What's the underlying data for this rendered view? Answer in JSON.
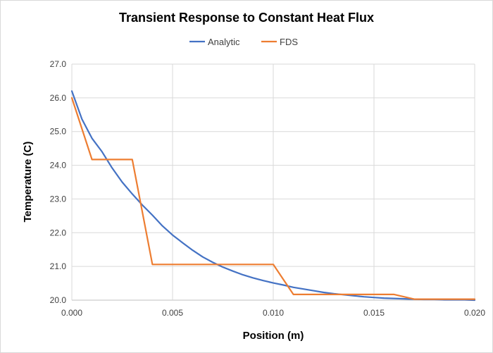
{
  "chart_data": {
    "type": "line",
    "title": "Transient  Response  to  Constant  Heat  Flux",
    "xlabel": "Position (m)",
    "ylabel": "Temperature (C)",
    "xlim": [
      0.0,
      0.02
    ],
    "ylim": [
      20.0,
      27.0
    ],
    "x_ticks": [
      "0.000",
      "0.005",
      "0.010",
      "0.015",
      "0.020"
    ],
    "x_tick_values": [
      0.0,
      0.005,
      0.01,
      0.015,
      0.02
    ],
    "y_ticks": [
      "20.0",
      "21.0",
      "22.0",
      "23.0",
      "24.0",
      "25.0",
      "26.0",
      "27.0"
    ],
    "y_tick_values": [
      20,
      21,
      22,
      23,
      24,
      25,
      26,
      27
    ],
    "grid": true,
    "legend_position": "top",
    "series": [
      {
        "name": "Analytic",
        "color": "#4472c4",
        "x": [
          0.0,
          0.0005,
          0.001,
          0.0015,
          0.002,
          0.0025,
          0.003,
          0.0035,
          0.004,
          0.0045,
          0.005,
          0.0055,
          0.006,
          0.0065,
          0.007,
          0.0075,
          0.008,
          0.0085,
          0.009,
          0.0095,
          0.01,
          0.0105,
          0.011,
          0.0115,
          0.012,
          0.0125,
          0.013,
          0.0135,
          0.014,
          0.0145,
          0.015,
          0.0155,
          0.016,
          0.0165,
          0.017,
          0.0175,
          0.018,
          0.0185,
          0.019,
          0.0195,
          0.02
        ],
        "values": [
          26.2,
          25.37,
          24.8,
          24.4,
          23.92,
          23.5,
          23.15,
          22.82,
          22.52,
          22.2,
          21.93,
          21.7,
          21.48,
          21.28,
          21.12,
          20.98,
          20.86,
          20.75,
          20.66,
          20.58,
          20.51,
          20.45,
          20.38,
          20.33,
          20.28,
          20.23,
          20.19,
          20.16,
          20.13,
          20.1,
          20.08,
          20.06,
          20.05,
          20.04,
          20.03,
          20.02,
          20.02,
          20.01,
          20.01,
          20.01,
          20.0
        ]
      },
      {
        "name": "FDS",
        "color": "#ed7d31",
        "x": [
          0.0,
          0.001,
          0.002,
          0.003,
          0.004,
          0.005,
          0.006,
          0.007,
          0.008,
          0.009,
          0.01,
          0.011,
          0.012,
          0.013,
          0.014,
          0.015,
          0.016,
          0.017,
          0.018,
          0.019,
          0.02
        ],
        "values": [
          26.0,
          24.17,
          24.17,
          24.17,
          21.06,
          21.06,
          21.06,
          21.06,
          21.06,
          21.06,
          21.06,
          20.17,
          20.17,
          20.17,
          20.17,
          20.17,
          20.17,
          20.03,
          20.03,
          20.03,
          20.03
        ]
      }
    ]
  }
}
